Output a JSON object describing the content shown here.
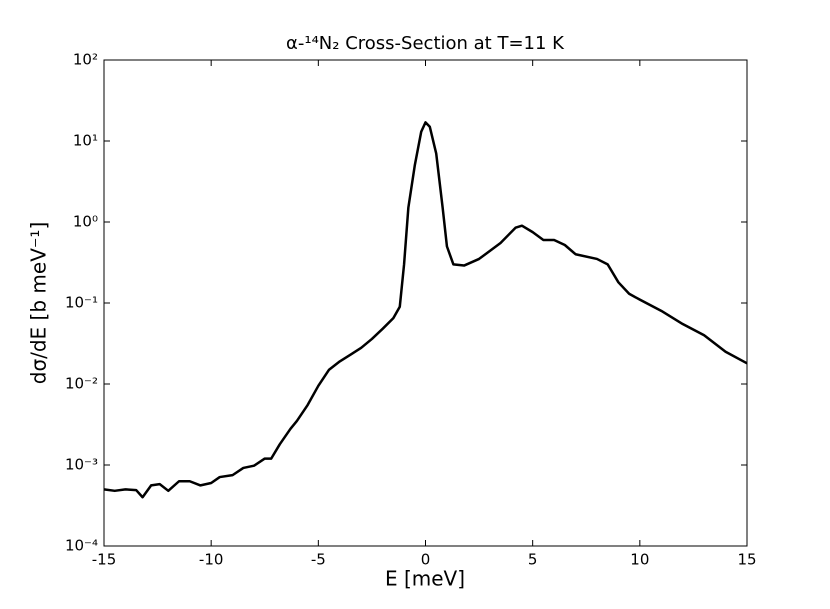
{
  "chart_data": {
    "type": "line",
    "title": "α-¹⁴N₂ Cross-Section at T=11 K",
    "xlabel": "E [meV]",
    "ylabel": "dσ/dE [b meV⁻¹]",
    "x": [
      -15,
      -14.5,
      -14,
      -13.5,
      -13.2,
      -12.8,
      -12.4,
      -12,
      -11.5,
      -11,
      -10.5,
      -10,
      -9.6,
      -9,
      -8.5,
      -8,
      -7.5,
      -7.2,
      -6.8,
      -6.3,
      -6,
      -5.5,
      -5,
      -4.5,
      -4,
      -3.5,
      -3,
      -2.5,
      -2,
      -1.5,
      -1.2,
      -1,
      -0.8,
      -0.5,
      -0.2,
      0,
      0.2,
      0.5,
      0.8,
      1,
      1.3,
      1.8,
      2.5,
      3.5,
      4.2,
      4.5,
      5,
      5.5,
      6,
      6.5,
      7,
      8,
      8.5,
      9,
      9.5,
      10,
      11,
      12,
      13,
      14,
      15
    ],
    "values": [
      0.0005,
      0.00048,
      0.0005,
      0.00049,
      0.0004,
      0.00056,
      0.00058,
      0.00048,
      0.00063,
      0.00063,
      0.00056,
      0.0006,
      0.00071,
      0.00075,
      0.00092,
      0.00098,
      0.0012,
      0.0012,
      0.0018,
      0.0028,
      0.0035,
      0.0055,
      0.0095,
      0.015,
      0.019,
      0.023,
      0.028,
      0.036,
      0.048,
      0.065,
      0.09,
      0.3,
      1.5,
      5,
      13,
      17,
      15,
      7,
      1.5,
      0.5,
      0.3,
      0.29,
      0.35,
      0.55,
      0.85,
      0.9,
      0.75,
      0.6,
      0.6,
      0.52,
      0.4,
      0.35,
      0.3,
      0.18,
      0.13,
      0.11,
      0.08,
      0.055,
      0.04,
      0.025,
      0.018
    ],
    "color": "#000000",
    "xlim": [
      -15,
      15
    ],
    "xticks": [
      -15,
      -10,
      -5,
      0,
      5,
      10,
      15
    ],
    "ylim": [
      0.0001,
      100
    ],
    "yscale": "log",
    "yticks": [
      {
        "value": 0.0001,
        "label": "10⁻⁴"
      },
      {
        "value": 0.001,
        "label": "10⁻³"
      },
      {
        "value": 0.01,
        "label": "10⁻²"
      },
      {
        "value": 0.1,
        "label": "10⁻¹"
      },
      {
        "value": 1,
        "label": "10⁰"
      },
      {
        "value": 10,
        "label": "10¹"
      },
      {
        "value": 100,
        "label": "10²"
      }
    ],
    "grid": false
  }
}
